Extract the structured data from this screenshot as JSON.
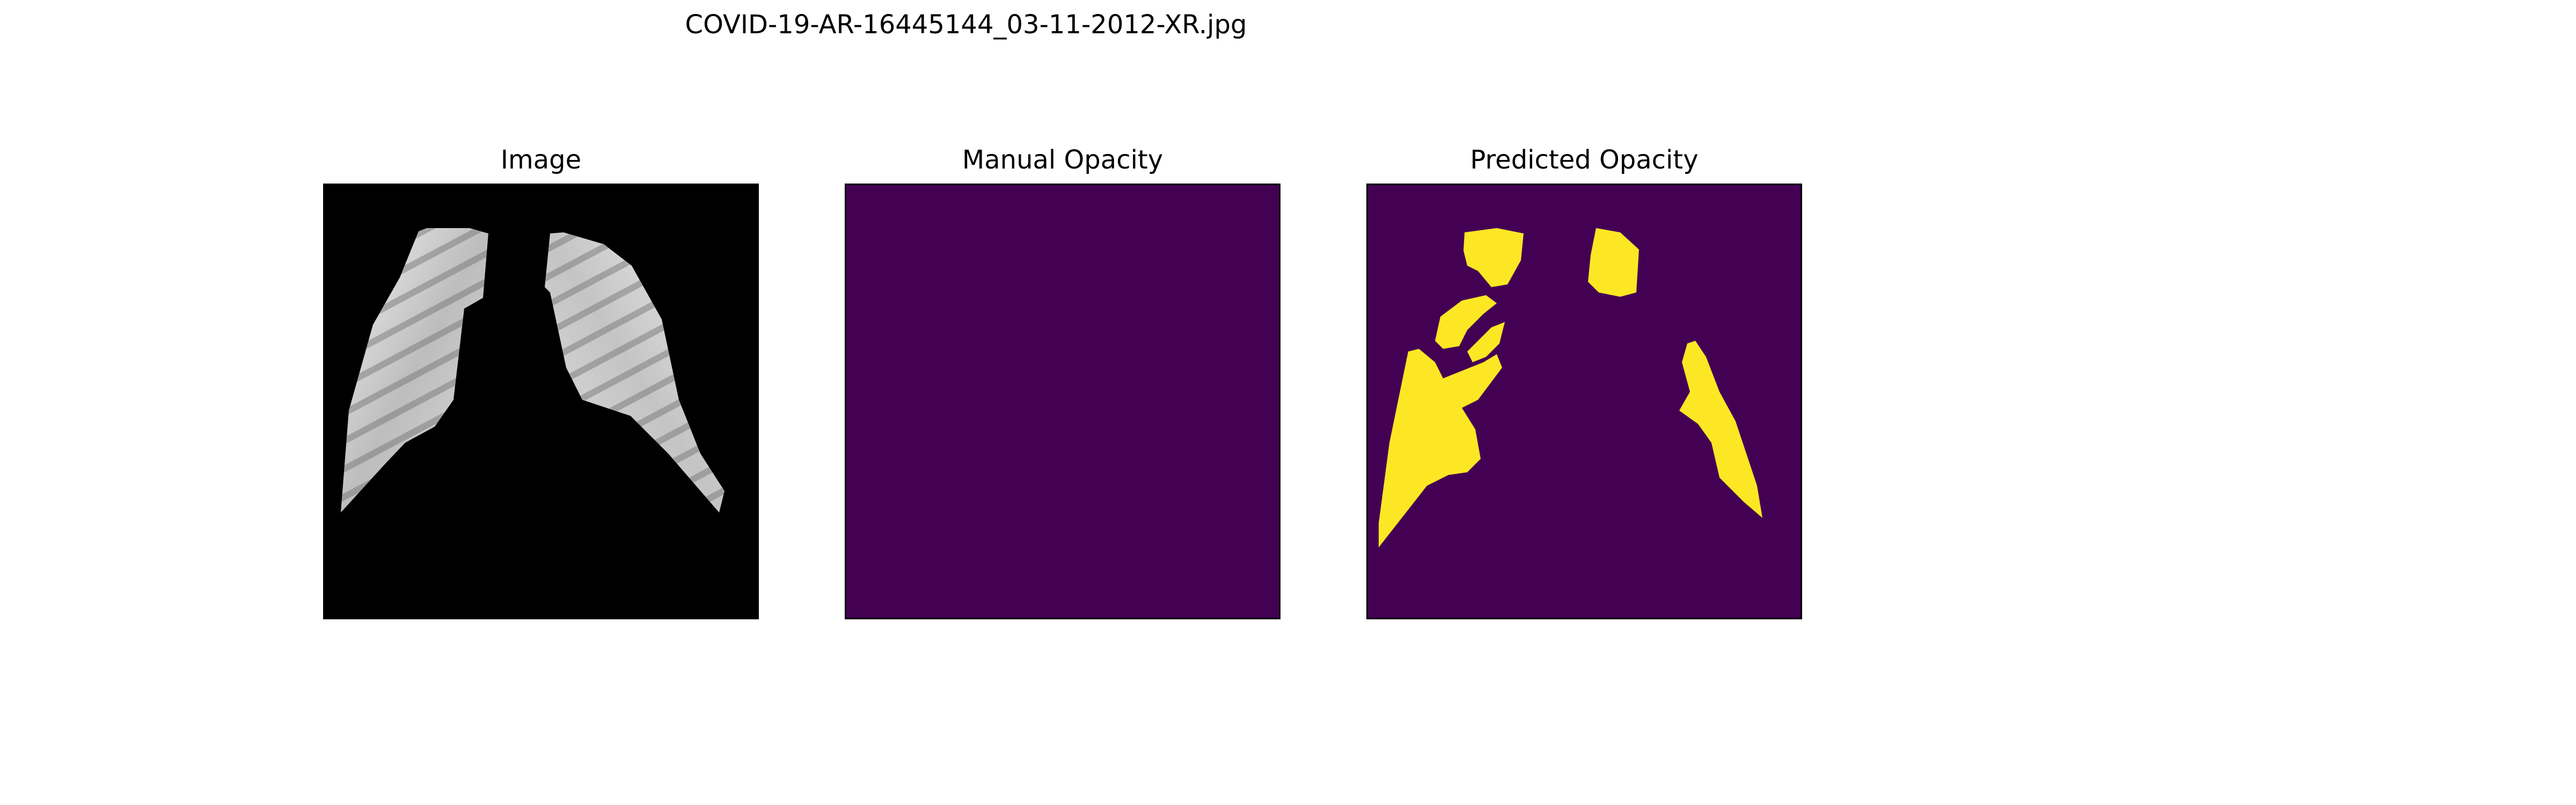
{
  "figure": {
    "title": "COVID-19-AR-16445144_03-11-2012-XR.jpg"
  },
  "panels": [
    {
      "title": "Image",
      "content": "chest X-ray, lung region masked"
    },
    {
      "title": "Manual Opacity",
      "content": "empty mask"
    },
    {
      "title": "Predicted Opacity",
      "content": "predicted opacity mask"
    }
  ],
  "colors": {
    "background": "#ffffff",
    "xray_background": "#000000",
    "mask_background": "#440154",
    "mask_foreground": "#fde725",
    "frame": "#000000"
  }
}
